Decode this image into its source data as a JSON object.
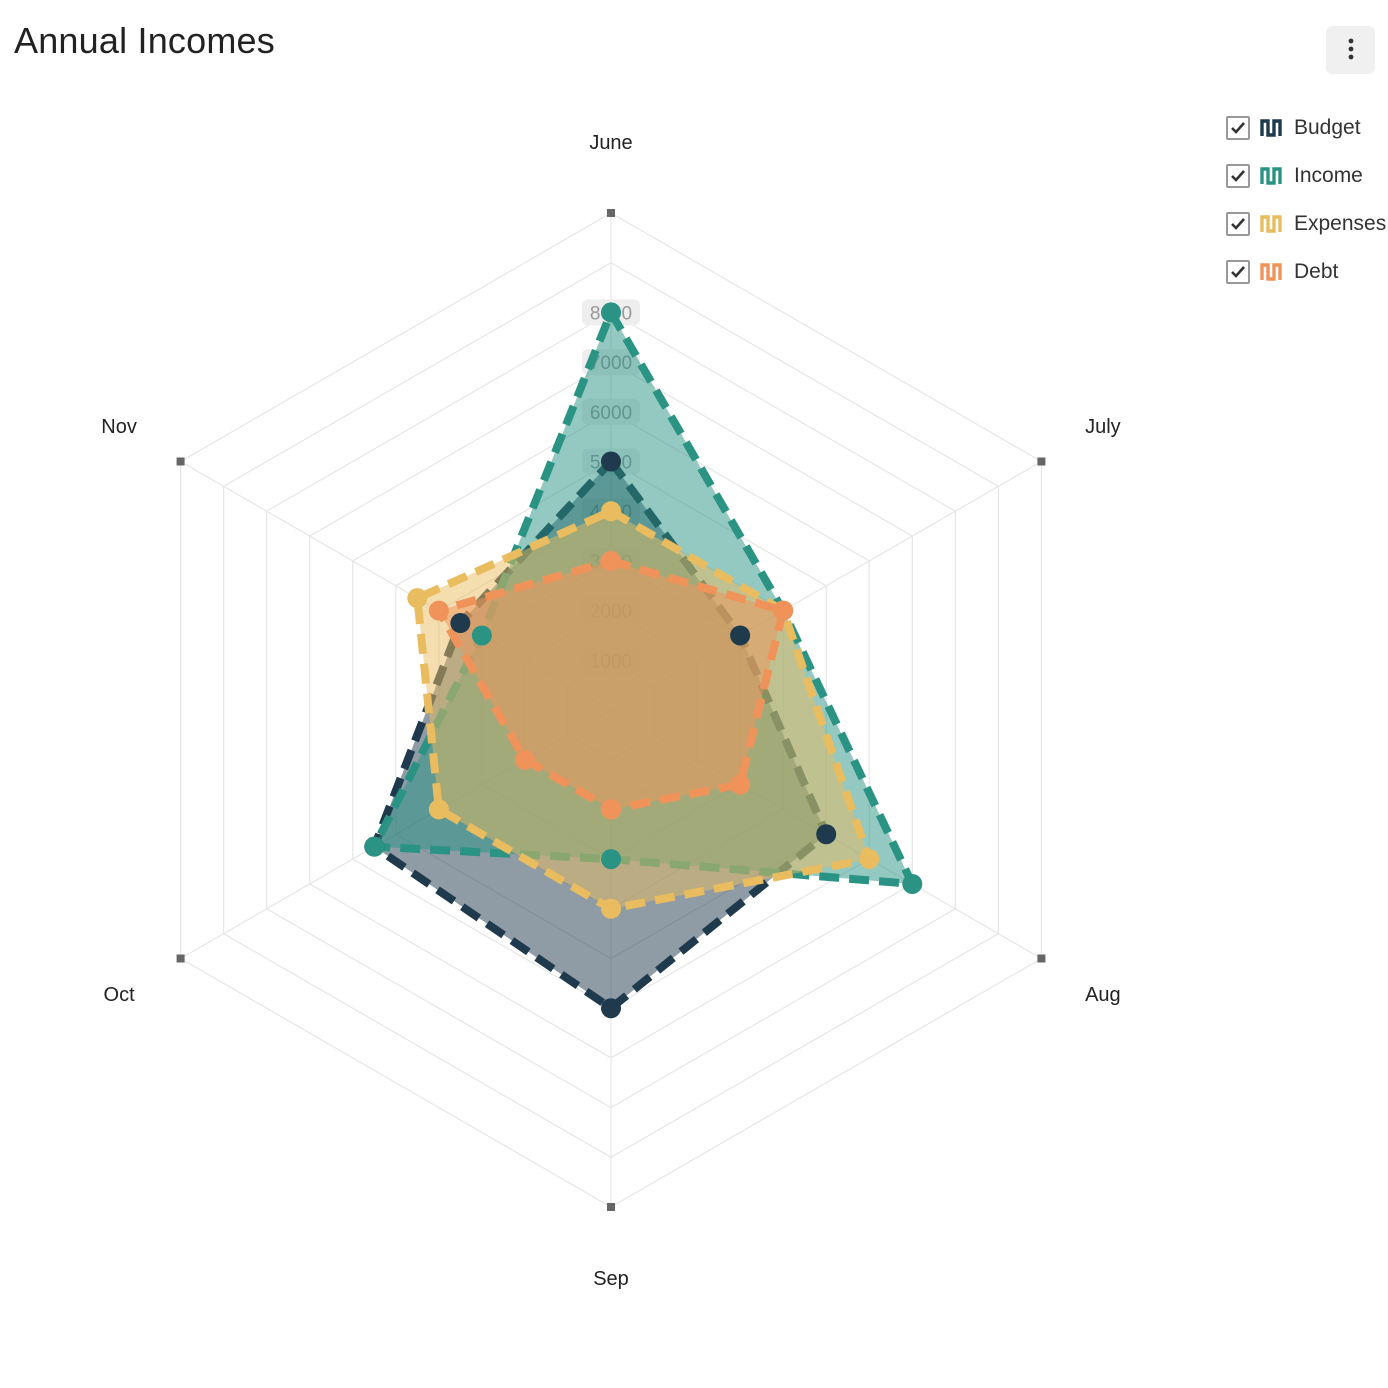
{
  "title": "Annual Incomes",
  "menu": {
    "icon": "kebab-menu-icon"
  },
  "legend": [
    {
      "label": "Budget",
      "color": "#1f3a4d",
      "checked": true,
      "icon": "series-line-icon"
    },
    {
      "label": "Income",
      "color": "#2a9384",
      "checked": true,
      "icon": "series-line-icon"
    },
    {
      "label": "Expenses",
      "color": "#e9bc5f",
      "checked": true,
      "icon": "series-line-icon"
    },
    {
      "label": "Debt",
      "color": "#f0935a",
      "checked": true,
      "icon": "series-line-icon"
    }
  ],
  "chart_data": {
    "type": "radar",
    "title": "Annual Incomes",
    "categories": [
      "June",
      "July",
      "Aug",
      "Sep",
      "Oct",
      "Nov"
    ],
    "radial_ticks": [
      1000,
      2000,
      3000,
      4000,
      5000,
      6000,
      7000,
      8000
    ],
    "range": [
      0,
      10000
    ],
    "grid": true,
    "legend_position": "top-right",
    "series": [
      {
        "name": "Budget",
        "color": "#1f3a4d",
        "values": [
          5000,
          3000,
          5000,
          6000,
          5500,
          3500
        ]
      },
      {
        "name": "Income",
        "color": "#2a9384",
        "values": [
          8000,
          4000,
          7000,
          3000,
          5500,
          3000
        ]
      },
      {
        "name": "Expenses",
        "color": "#e9bc5f",
        "values": [
          4000,
          4000,
          6000,
          4000,
          4000,
          4500
        ]
      },
      {
        "name": "Debt",
        "color": "#f0935a",
        "values": [
          3000,
          4000,
          3000,
          2000,
          2000,
          4000
        ]
      }
    ]
  }
}
